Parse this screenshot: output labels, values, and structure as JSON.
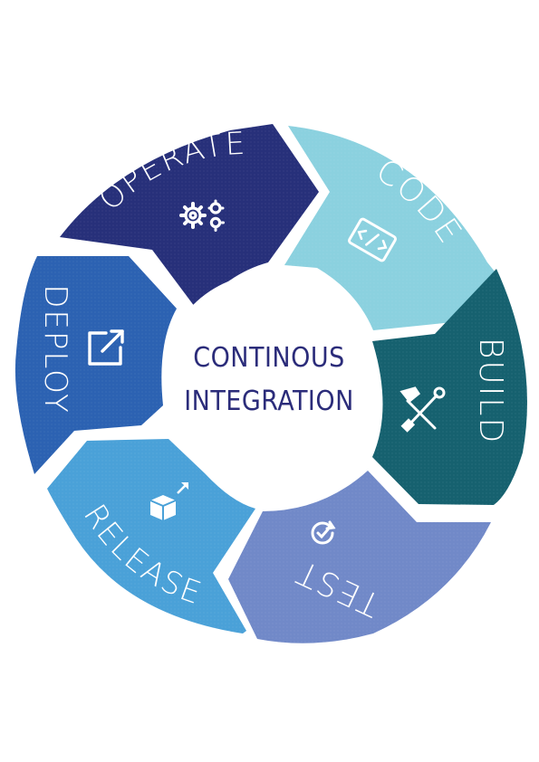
{
  "center": {
    "line1": "CONTINOUS",
    "line2": "INTEGRATION"
  },
  "stages": [
    {
      "id": "operate",
      "label": "OPERATE",
      "icon": "gears-icon",
      "color": "#27307a"
    },
    {
      "id": "code",
      "label": "CODE",
      "icon": "code-icon",
      "color": "#8bd1df"
    },
    {
      "id": "build",
      "label": "BUILD",
      "icon": "tools-icon",
      "color": "#16616f"
    },
    {
      "id": "test",
      "label": "TEST",
      "icon": "refresh-check-icon",
      "color": "#7189c8"
    },
    {
      "id": "release",
      "label": "RELEASE",
      "icon": "box-arrow-icon",
      "color": "#4aa1d8"
    },
    {
      "id": "deploy",
      "label": "DEPLOY",
      "icon": "external-link-icon",
      "color": "#2c62b2"
    }
  ],
  "colors": {
    "center_text": "#2b2c7a",
    "center_fill": "#ffffff"
  }
}
